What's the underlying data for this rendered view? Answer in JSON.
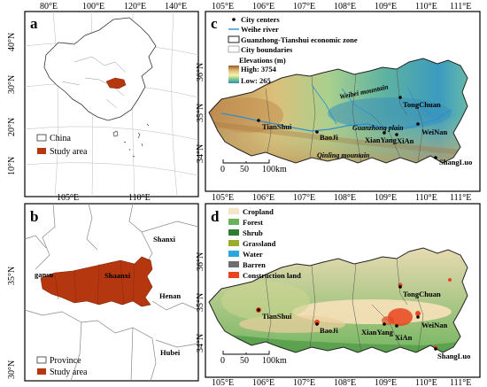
{
  "panel_a": {
    "letter": "a",
    "top_ticks": [
      "80°E",
      "100°E",
      "120°E",
      "140°E"
    ],
    "left_ticks": [
      "40°N",
      "30°N",
      "20°N",
      "10°N"
    ],
    "legend": [
      "China",
      "Study area"
    ]
  },
  "panel_b": {
    "letter": "b",
    "top_ticks": [
      "105°E",
      "110°E"
    ],
    "left_ticks": [
      "35°N",
      "30°N"
    ],
    "labels": {
      "shanxi": "Shanxi",
      "henan": "Henan",
      "hubei": "Hubei",
      "gansu": "gansu",
      "shaanxi": "Shaanxi"
    },
    "legend": [
      "Province",
      "Study area"
    ]
  },
  "panel_c": {
    "letter": "c",
    "top_ticks": [
      "105°E",
      "106°E",
      "107°E",
      "108°E",
      "109°E",
      "110°E",
      "111°E"
    ],
    "left_ticks": [
      "36°N",
      "35°N",
      "34°N"
    ],
    "legend": {
      "city_centers": "City centers",
      "river": "Weihe river",
      "zone": "Guanzhong-Tianshui economic zone",
      "boundaries": "City boundaries",
      "elev_title": "Elevations (m)",
      "high": "High: 3754",
      "low": "Low: 265"
    },
    "features": {
      "weibei": "Weibei mountain",
      "guanzhong": "Guanzhong plain",
      "qinling": "Qinling mountain"
    },
    "scale": [
      "0",
      "50",
      "100km"
    ]
  },
  "panel_d": {
    "letter": "d",
    "bottom_ticks": [
      "105°E",
      "106°E",
      "107°E",
      "108°E",
      "109°E",
      "110°E",
      "111°E"
    ],
    "left_ticks": [
      "36°N",
      "35°N",
      "34°N"
    ],
    "legend": [
      {
        "label": "Cropland",
        "color": "#f5e6c8"
      },
      {
        "label": "Forest",
        "color": "#6bb35a"
      },
      {
        "label": "Shrub",
        "color": "#2e7d32"
      },
      {
        "label": "Grassland",
        "color": "#9aab2e"
      },
      {
        "label": "Water",
        "color": "#2aa7e0"
      },
      {
        "label": "Barren",
        "color": "#6e6e6e"
      },
      {
        "label": "Construction land",
        "color": "#e8451e"
      }
    ],
    "scale": [
      "0",
      "50",
      "100km"
    ]
  },
  "cities": [
    "TongChuan",
    "TianShui",
    "BaoJi",
    "XianYang",
    "XiAn",
    "WeiNan",
    "ShangLuo"
  ],
  "colors": {
    "study_area": "#b5370f",
    "river": "#2a8fd6"
  }
}
